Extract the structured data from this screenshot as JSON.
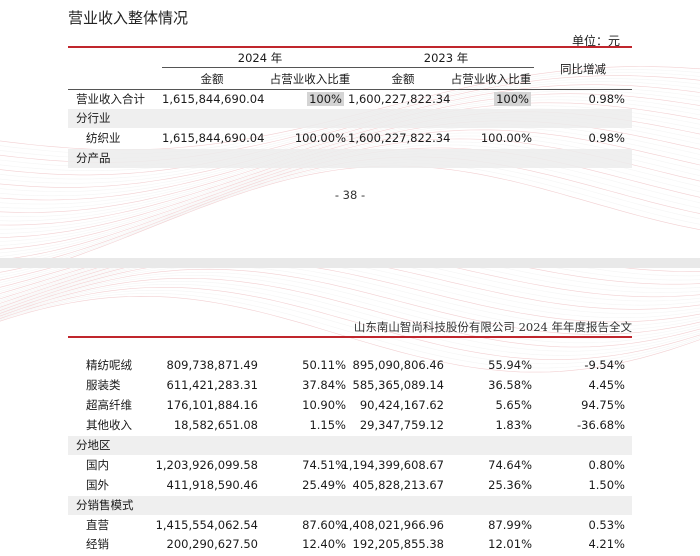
{
  "section_title": "营业收入整体情况",
  "unit_label": "单位：元",
  "header": {
    "year_current": "2024 年",
    "year_previous": "2023 年",
    "amount": "金额",
    "ratio": "占营业收入比重",
    "yoy": "同比增减"
  },
  "top_rows": [
    {
      "label": "营业收入合计",
      "amt24": "1,615,844,690.04",
      "pct24": "100%",
      "amt23": "1,600,227,822.34",
      "pct23": "100%",
      "yoy": "0.98%"
    },
    {
      "label": "分行业"
    },
    {
      "label": "纺织业",
      "amt24": "1,615,844,690.04",
      "pct24": "100.00%",
      "amt23": "1,600,227,822.34",
      "pct23": "100.00%",
      "yoy": "0.98%"
    },
    {
      "label": "分产品"
    }
  ],
  "page_number": "- 38 -",
  "report_title": "山东南山智尚科技股份有限公司 2024 年年度报告全文",
  "bottom_rows": [
    {
      "label": "精纺呢绒",
      "amt24": "809,738,871.49",
      "pct24": "50.11%",
      "amt23": "895,090,806.46",
      "pct23": "55.94%",
      "yoy": "-9.54%"
    },
    {
      "label": "服装类",
      "amt24": "611,421,283.31",
      "pct24": "37.84%",
      "amt23": "585,365,089.14",
      "pct23": "36.58%",
      "yoy": "4.45%"
    },
    {
      "label": "超高纤维",
      "amt24": "176,101,884.16",
      "pct24": "10.90%",
      "amt23": "90,424,167.62",
      "pct23": "5.65%",
      "yoy": "94.75%"
    },
    {
      "label": "其他收入",
      "amt24": "18,582,651.08",
      "pct24": "1.15%",
      "amt23": "29,347,759.12",
      "pct23": "1.83%",
      "yoy": "-36.68%"
    },
    {
      "label": "分地区"
    },
    {
      "label": "国内",
      "amt24": "1,203,926,099.58",
      "pct24": "74.51%",
      "amt23": "1,194,399,608.67",
      "pct23": "74.64%",
      "yoy": "0.80%"
    },
    {
      "label": "国外",
      "amt24": "411,918,590.46",
      "pct24": "25.49%",
      "amt23": "405,828,213.67",
      "pct23": "25.36%",
      "yoy": "1.50%"
    },
    {
      "label": "分销售模式"
    },
    {
      "label": "直营",
      "amt24": "1,415,554,062.54",
      "pct24": "87.60%",
      "amt23": "1,408,021,966.96",
      "pct23": "87.99%",
      "yoy": "0.53%"
    },
    {
      "label": "经销",
      "amt24": "200,290,627.50",
      "pct24": "12.40%",
      "amt23": "192,205,855.38",
      "pct23": "12.01%",
      "yoy": "4.21%"
    }
  ]
}
